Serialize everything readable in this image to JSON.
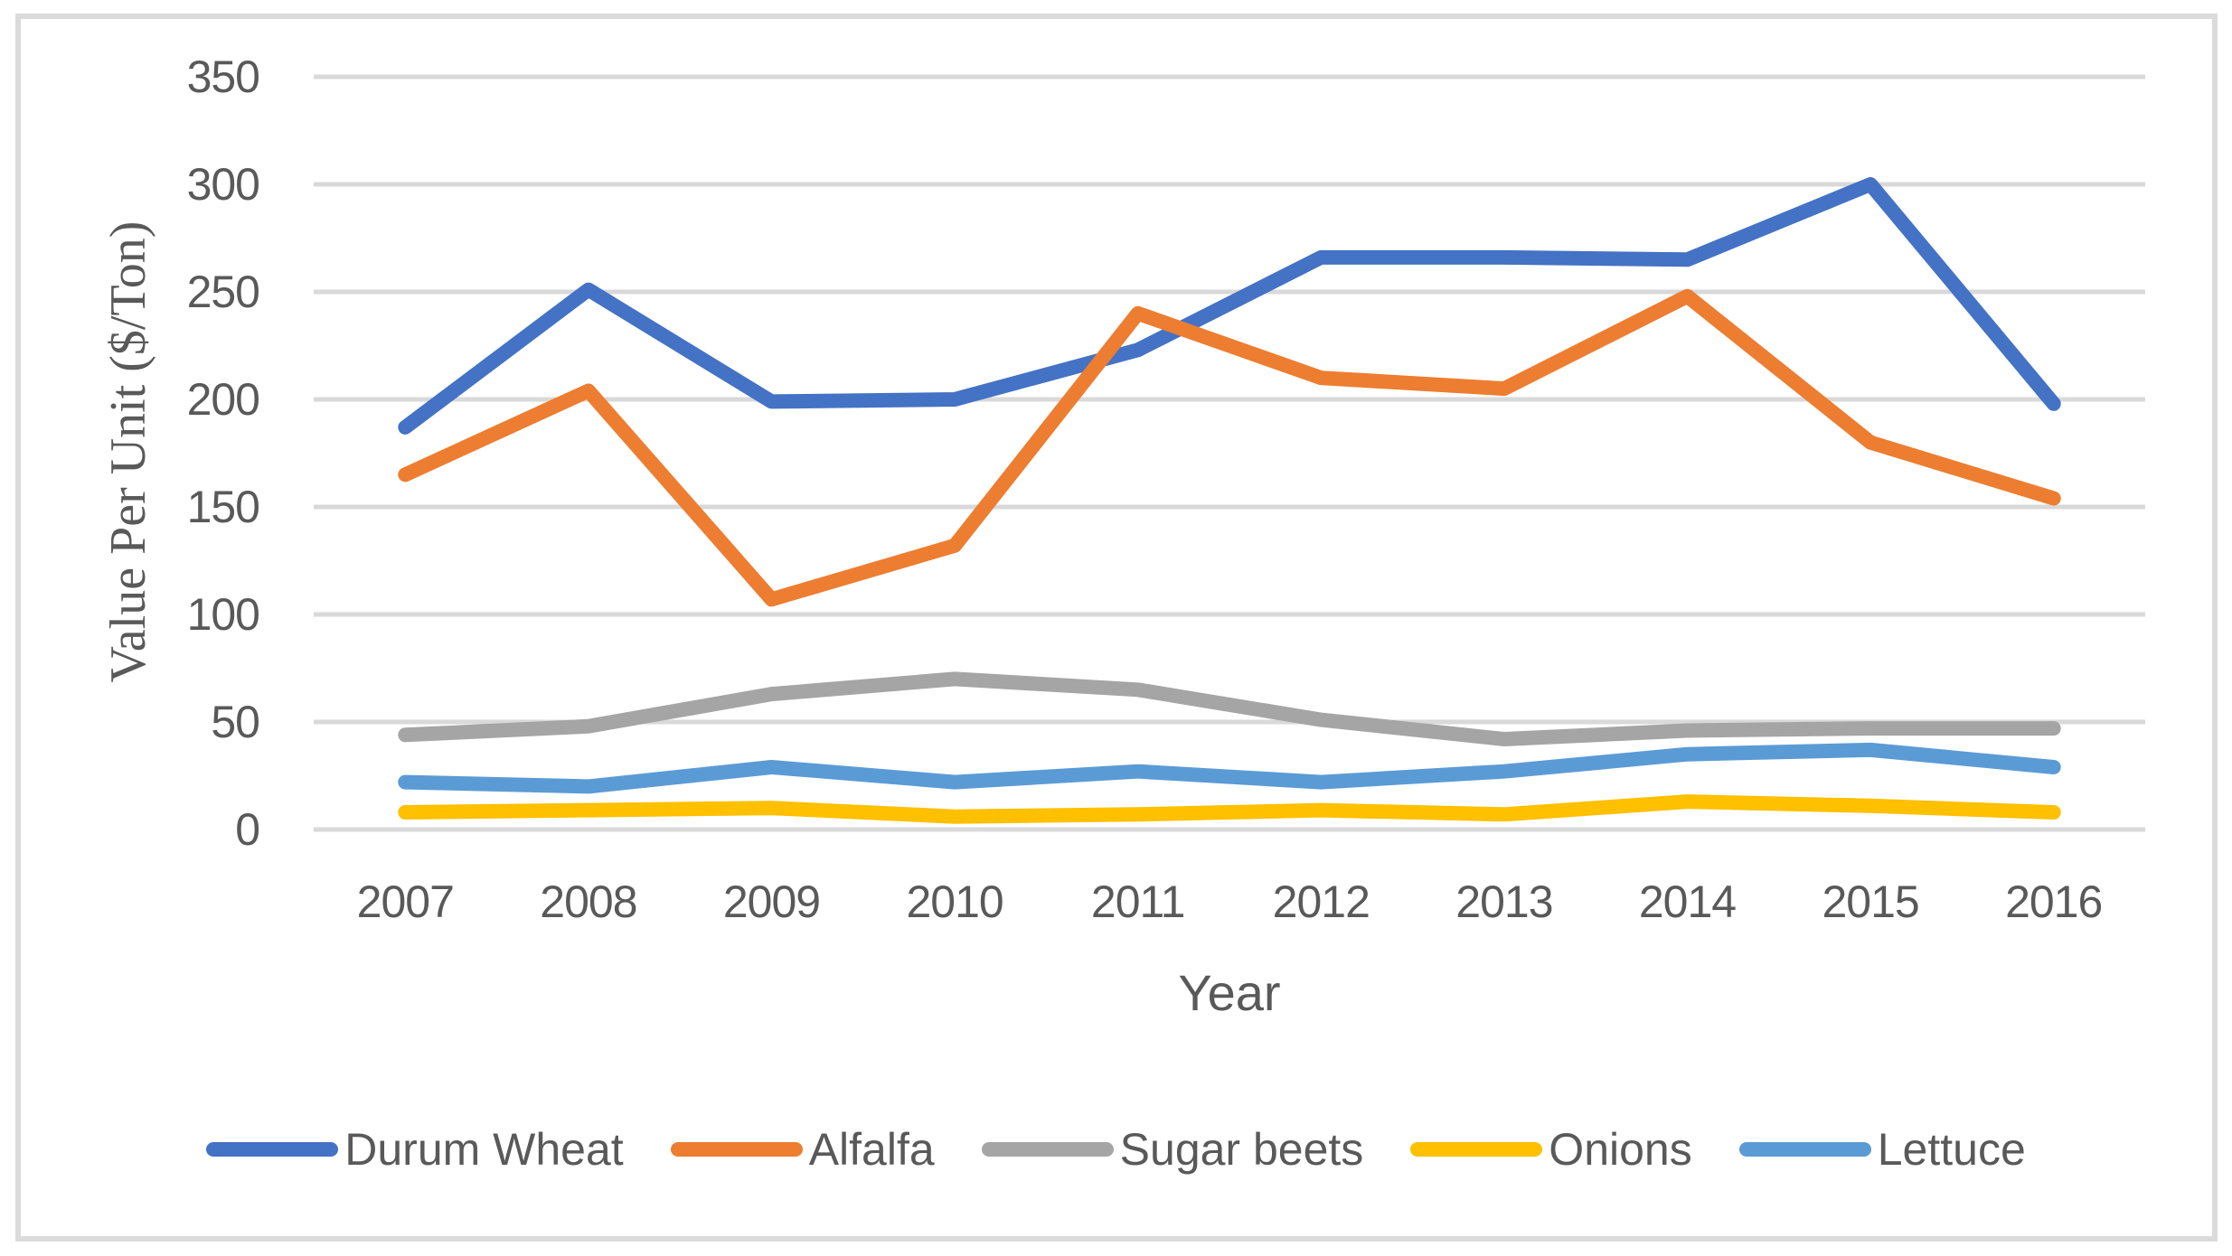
{
  "chart_data": {
    "type": "line",
    "title": "",
    "xlabel": "Year",
    "ylabel": "Value Per Unit ($/Ton)",
    "categories": [
      "2007",
      "2008",
      "2009",
      "2010",
      "2011",
      "2012",
      "2013",
      "2014",
      "2015",
      "2016"
    ],
    "yticks": [
      0,
      50,
      100,
      150,
      200,
      250,
      300,
      350
    ],
    "ylim": [
      0,
      350
    ],
    "grid": "horizontal",
    "gridline_color": "#D9D9D9",
    "tick_text_color": "#595959",
    "figure_border_color": "#DBDBDB",
    "legend_position": "bottom",
    "series": [
      {
        "name": "Durum Wheat",
        "color": "#4472C4",
        "values": [
          187,
          251,
          199,
          200,
          223,
          266,
          266,
          265,
          300,
          198
        ]
      },
      {
        "name": "Alfalfa",
        "color": "#ED7D31",
        "values": [
          165,
          204,
          107,
          132,
          240,
          210,
          205,
          248,
          180,
          154
        ]
      },
      {
        "name": "Sugar beets",
        "color": "#A5A5A5",
        "values": [
          44,
          48,
          63,
          70,
          65,
          51,
          42,
          46,
          47,
          47
        ]
      },
      {
        "name": "Onions",
        "color": "#FFC000",
        "values": [
          8,
          9,
          10,
          6,
          7,
          9,
          7,
          13,
          11,
          8
        ]
      },
      {
        "name": "Lettuce",
        "color": "#5B9BD5",
        "values": [
          22,
          20,
          29,
          22,
          27,
          22,
          27,
          35,
          37,
          29
        ]
      }
    ]
  }
}
